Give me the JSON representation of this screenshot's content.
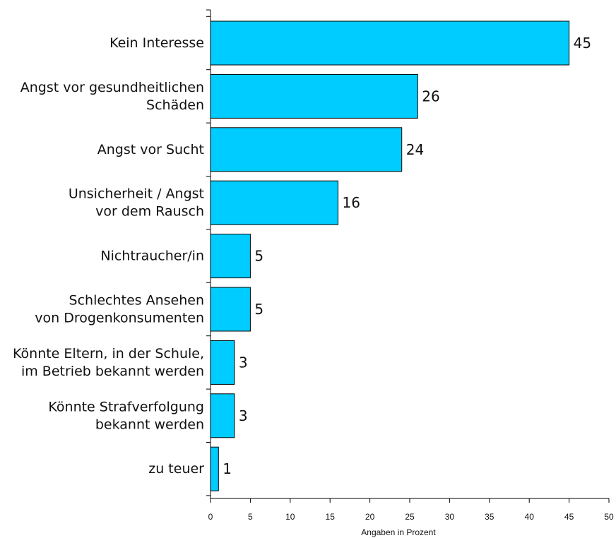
{
  "chart_data": {
    "type": "bar",
    "orientation": "horizontal",
    "categories": [
      [
        "Kein Interesse"
      ],
      [
        "Angst vor gesundheitlichen",
        "Schäden"
      ],
      [
        "Angst vor Sucht"
      ],
      [
        "Unsicherheit / Angst",
        "vor dem Rausch"
      ],
      [
        "Nichtraucher/in"
      ],
      [
        "Schlechtes Ansehen",
        "von Drogenkonsumenten"
      ],
      [
        "Könnte Eltern, in der Schule,",
        "im Betrieb bekannt werden"
      ],
      [
        "Könnte Strafverfolgung",
        "bekannt werden"
      ],
      [
        "zu teuer"
      ]
    ],
    "values": [
      45,
      26,
      24,
      16,
      5,
      5,
      3,
      3,
      1
    ],
    "value_labels": [
      "45",
      "26",
      "24",
      "16",
      "5",
      "5",
      "3",
      "3",
      "1"
    ],
    "xlim": [
      0,
      50
    ],
    "xticks": [
      0,
      5,
      10,
      15,
      20,
      25,
      30,
      35,
      40,
      45,
      50
    ],
    "xtick_labels": [
      "0",
      "5",
      "10",
      "15",
      "20",
      "25",
      "30",
      "35",
      "40",
      "45",
      "50"
    ],
    "xlabel": "Angaben in Prozent",
    "title": "",
    "legend": "none",
    "grid": false,
    "colors": {
      "bar_fill": "#00ccff",
      "bar_stroke": "#000000",
      "axis": "#000000"
    }
  }
}
